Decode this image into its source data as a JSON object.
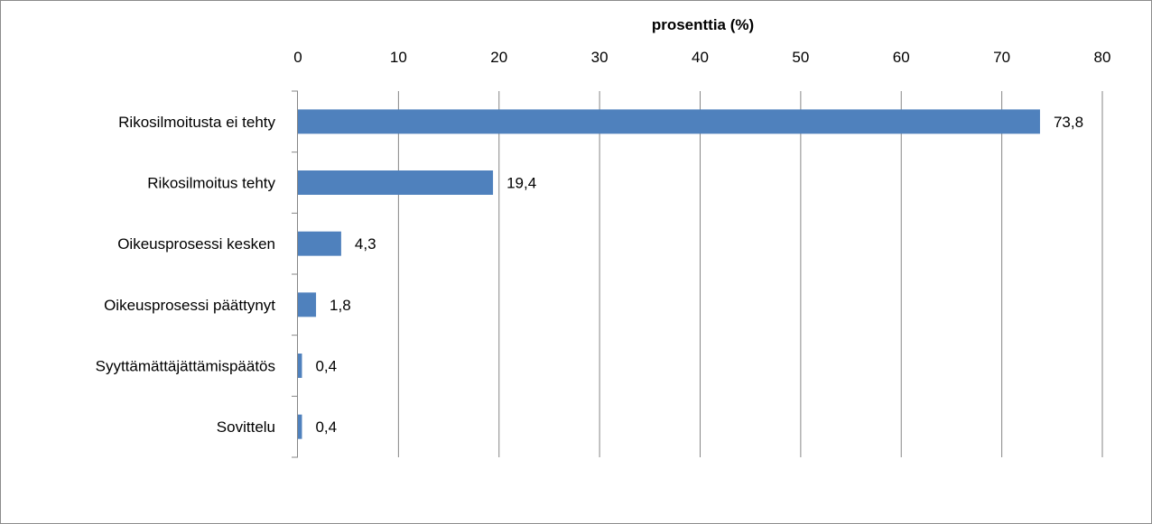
{
  "chart_data": {
    "type": "bar",
    "orientation": "horizontal",
    "xlabel": "prosenttia (%)",
    "ylabel": "",
    "xlim": [
      0,
      80
    ],
    "ticks": [
      "0",
      "10",
      "20",
      "30",
      "40",
      "50",
      "60",
      "70",
      "80"
    ],
    "tick_values": [
      0,
      10,
      20,
      30,
      40,
      50,
      60,
      70,
      80
    ],
    "categories": [
      "Rikosilmoitusta ei tehty",
      "Rikosilmoitus tehty",
      "Oikeusprosessi kesken",
      "Oikeusprosessi päättynyt",
      "Syyttämättäjättämispäätös",
      "Sovittelu"
    ],
    "values": [
      73.8,
      19.4,
      4.3,
      1.8,
      0.4,
      0.4
    ],
    "value_labels": [
      "73,8",
      "19,4",
      "4,3",
      "1,8",
      "0,4",
      "0,4"
    ],
    "axis_position": "top",
    "grid": true,
    "legend": "none",
    "colors": {
      "bar": "#4f81bd",
      "grid": "#868686",
      "frame": "#8c8c8c"
    }
  }
}
